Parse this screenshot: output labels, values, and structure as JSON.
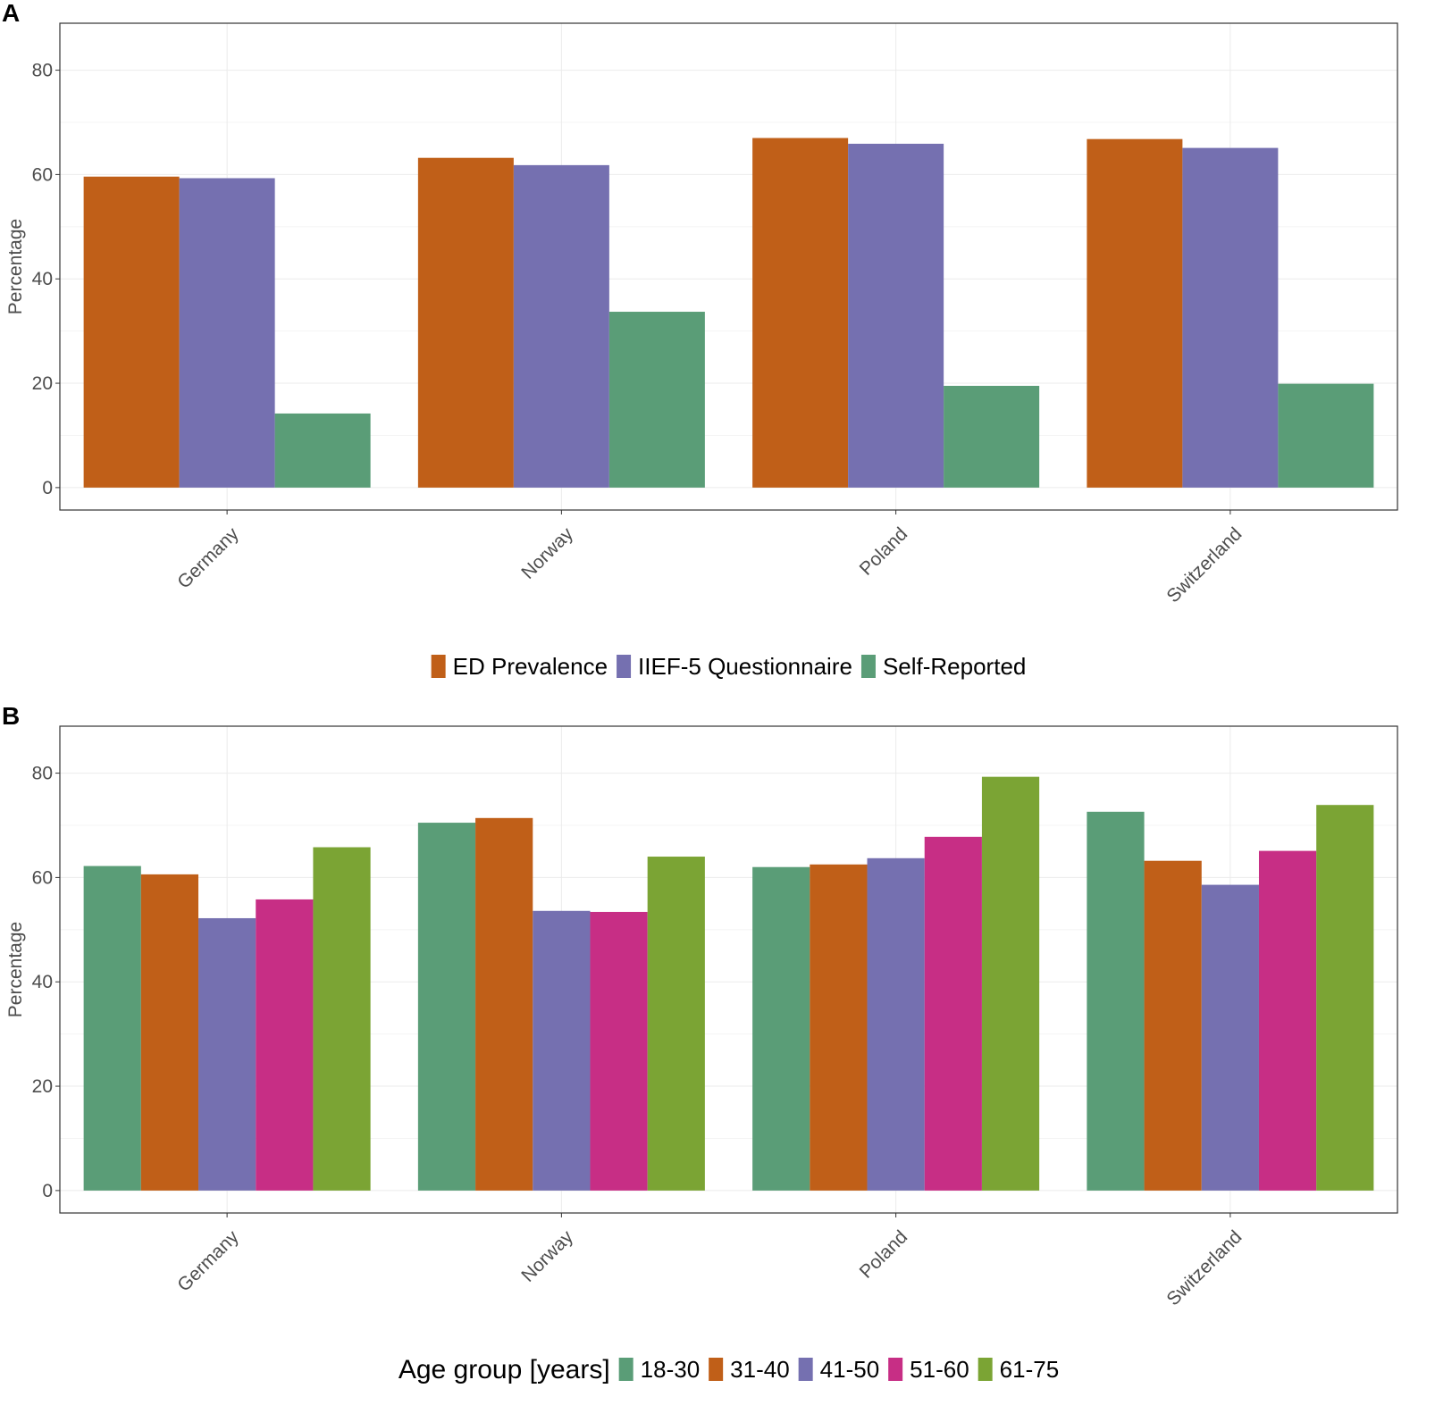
{
  "chart_data": [
    {
      "panel_label": "A",
      "type": "bar",
      "ylabel": "Percentage",
      "xlabel": "",
      "ylim": [
        -4.3,
        89
      ],
      "yticks": [
        0,
        20,
        40,
        60,
        80
      ],
      "grid": true,
      "legend_title": "",
      "legend_position": "bottom",
      "categories": [
        "Germany",
        "Norway",
        "Poland",
        "Switzerland"
      ],
      "series": [
        {
          "name": "ED Prevalence",
          "color": "#C05F18",
          "values": [
            59.6,
            63.2,
            67.0,
            66.8
          ]
        },
        {
          "name": "IIEF-5 Questionnaire",
          "color": "#7570B0",
          "values": [
            59.3,
            61.8,
            65.9,
            65.1
          ]
        },
        {
          "name": "Self-Reported",
          "color": "#5A9D77",
          "values": [
            14.2,
            33.7,
            19.5,
            19.9
          ]
        }
      ]
    },
    {
      "panel_label": "B",
      "type": "bar",
      "ylabel": "Percentage",
      "xlabel": "",
      "ylim": [
        -4.3,
        89
      ],
      "yticks": [
        0,
        20,
        40,
        60,
        80
      ],
      "grid": true,
      "legend_title": "Age group [years]",
      "legend_position": "bottom",
      "categories": [
        "Germany",
        "Norway",
        "Poland",
        "Switzerland"
      ],
      "series": [
        {
          "name": "18-30",
          "color": "#5A9D77",
          "values": [
            62.2,
            70.5,
            62.0,
            72.6
          ]
        },
        {
          "name": "31-40",
          "color": "#C05F18",
          "values": [
            60.6,
            71.4,
            62.5,
            63.2
          ]
        },
        {
          "name": "41-50",
          "color": "#7570B0",
          "values": [
            52.2,
            53.6,
            63.7,
            58.6
          ]
        },
        {
          "name": "51-60",
          "color": "#C72E85",
          "values": [
            55.8,
            53.4,
            67.8,
            65.1
          ]
        },
        {
          "name": "61-75",
          "color": "#7BA434",
          "values": [
            65.8,
            64.0,
            79.3,
            73.9
          ]
        }
      ]
    }
  ]
}
